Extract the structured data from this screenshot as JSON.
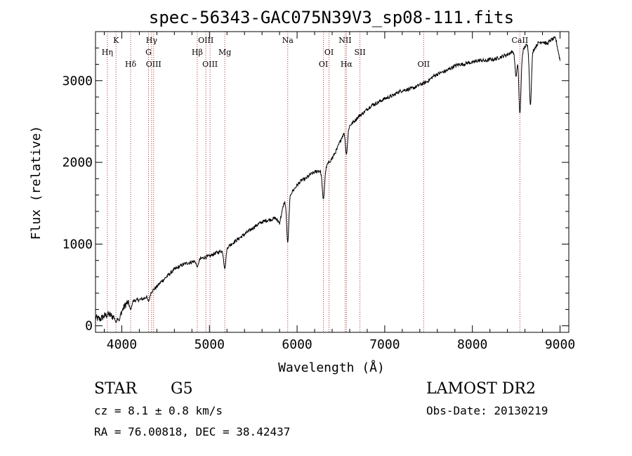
{
  "chart_data": {
    "type": "line",
    "title": "spec-56343-GAC075N39V3_sp08-111.fits",
    "xlabel": "Wavelength (Å)",
    "ylabel": "Flux (relative)",
    "xlim": [
      3700,
      9100
    ],
    "ylim": [
      -80,
      3600
    ],
    "xticks": [
      4000,
      5000,
      6000,
      7000,
      8000,
      9000
    ],
    "yticks": [
      0,
      1000,
      2000,
      3000
    ],
    "xtick_labels": [
      "4000",
      "5000",
      "6000",
      "7000",
      "8000",
      "9000"
    ],
    "ytick_labels": [
      "0",
      "1000",
      "2000",
      "3000"
    ],
    "series": [
      {
        "color": "#000000",
        "x": [
          3700,
          3750,
          3800,
          3850,
          3900,
          3950,
          4000,
          4050,
          4100,
          4150,
          4200,
          4250,
          4300,
          4350,
          4400,
          4450,
          4500,
          4550,
          4600,
          4650,
          4700,
          4750,
          4800,
          4850,
          4900,
          4950,
          5000,
          5050,
          5100,
          5150,
          5200,
          5250,
          5300,
          5350,
          5400,
          5450,
          5500,
          5550,
          5600,
          5650,
          5700,
          5750,
          5800,
          5850,
          5900,
          5950,
          6000,
          6050,
          6100,
          6150,
          6200,
          6250,
          6300,
          6350,
          6400,
          6450,
          6500,
          6550,
          6600,
          6650,
          6700,
          6750,
          6800,
          6850,
          6900,
          6950,
          7000,
          7050,
          7100,
          7150,
          7200,
          7250,
          7300,
          7350,
          7400,
          7450,
          7500,
          7550,
          7600,
          7650,
          7700,
          7750,
          7800,
          7850,
          7900,
          7950,
          8000,
          8050,
          8100,
          8150,
          8200,
          8250,
          8300,
          8350,
          8400,
          8450,
          8500,
          8550,
          8600,
          8650,
          8700,
          8750,
          8800,
          8850,
          8900,
          8950,
          9000
        ],
        "y": [
          100,
          80,
          120,
          140,
          110,
          160,
          180,
          270,
          300,
          310,
          320,
          330,
          380,
          430,
          480,
          540,
          590,
          640,
          690,
          720,
          750,
          770,
          780,
          800,
          820,
          840,
          850,
          880,
          900,
          920,
          960,
          1000,
          1040,
          1080,
          1120,
          1160,
          1200,
          1240,
          1270,
          1290,
          1300,
          1320,
          1260,
          1500,
          1580,
          1650,
          1720,
          1780,
          1800,
          1850,
          1880,
          1900,
          1870,
          1980,
          2050,
          2150,
          2280,
          2400,
          2450,
          2500,
          2560,
          2600,
          2650,
          2700,
          2720,
          2750,
          2780,
          2800,
          2820,
          2860,
          2880,
          2890,
          2900,
          2920,
          2950,
          2970,
          3000,
          3050,
          3080,
          3100,
          3120,
          3150,
          3180,
          3200,
          3200,
          3220,
          3220,
          3240,
          3250,
          3240,
          3260,
          3260,
          3280,
          3300,
          3320,
          3350,
          3380,
          3300,
          3420,
          3450,
          3380,
          3460,
          3480,
          3450,
          3500,
          3520,
          3250
        ],
        "dips": [
          {
            "x": 3934,
            "y": 40
          },
          {
            "x": 3969,
            "y": 60
          },
          {
            "x": 4101,
            "y": 200
          },
          {
            "x": 4305,
            "y": 300
          },
          {
            "x": 4861,
            "y": 720
          },
          {
            "x": 5175,
            "y": 700
          },
          {
            "x": 5893,
            "y": 1020
          },
          {
            "x": 6300,
            "y": 1550
          },
          {
            "x": 6563,
            "y": 2100
          },
          {
            "x": 8498,
            "y": 3050
          },
          {
            "x": 8542,
            "y": 2600
          },
          {
            "x": 8662,
            "y": 2700
          }
        ]
      }
    ],
    "lines": [
      {
        "x": 3835,
        "label": "Hη",
        "row": 2
      },
      {
        "x": 3934,
        "label": "K",
        "row": 1
      },
      {
        "x": 4101,
        "label": "Hδ",
        "row": 3
      },
      {
        "x": 4305,
        "label": "G",
        "row": 2
      },
      {
        "x": 4340,
        "label": "Hγ",
        "row": 1
      },
      {
        "x": 4363,
        "label": "OIII",
        "row": 3
      },
      {
        "x": 4861,
        "label": "Hβ",
        "row": 2
      },
      {
        "x": 4959,
        "label": "OIII",
        "row": 1
      },
      {
        "x": 5007,
        "label": "OIII",
        "row": 3
      },
      {
        "x": 5175,
        "label": "Mg",
        "row": 2
      },
      {
        "x": 5893,
        "label": "Na",
        "row": 1
      },
      {
        "x": 6300,
        "label": "OI",
        "row": 3
      },
      {
        "x": 6364,
        "label": "OI",
        "row": 2
      },
      {
        "x": 6548,
        "label": "NII",
        "row": 1
      },
      {
        "x": 6563,
        "label": "Hα",
        "row": 3
      },
      {
        "x": 6717,
        "label": "SII",
        "row": 2
      },
      {
        "x": 7444,
        "label": "OII",
        "row": 3
      },
      {
        "x": 8542,
        "label": "CaII",
        "row": 1
      }
    ],
    "line_color": "#b03030"
  },
  "info": {
    "class_label": "STAR",
    "subclass_label": "G5",
    "survey_label": "LAMOST DR2",
    "cz_text": "cz = 8.1 ± 0.8 km/s",
    "obs_date_text": "Obs-Date: 20130219",
    "radec_text": "RA =  76.00818, DEC =  38.42437"
  }
}
